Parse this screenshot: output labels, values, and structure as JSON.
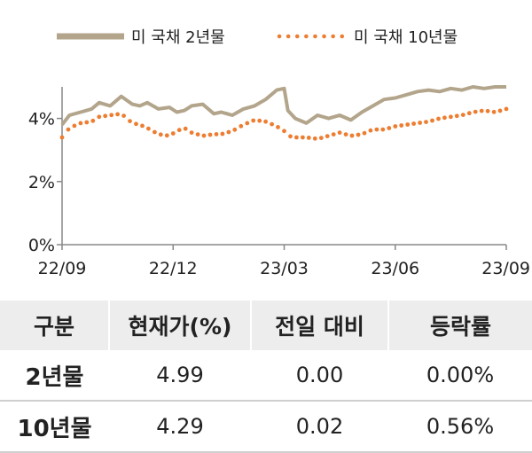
{
  "chart_data": {
    "type": "line",
    "title": "",
    "xlabel": "",
    "ylabel": "",
    "legend_position": "top",
    "grid": false,
    "ylim": [
      0,
      5
    ],
    "y_ticks": [
      {
        "value": 0,
        "label": "0%"
      },
      {
        "value": 2,
        "label": "2%"
      },
      {
        "value": 4,
        "label": "4%"
      }
    ],
    "x_ticks": [
      {
        "value": 0,
        "label": "22/09"
      },
      {
        "value": 3,
        "label": "22/12"
      },
      {
        "value": 6,
        "label": "23/03"
      },
      {
        "value": 9,
        "label": "23/06"
      },
      {
        "value": 12,
        "label": "23/09"
      }
    ],
    "x_unit_note": "months since 22/09",
    "series": [
      {
        "name": "미 국채 2년물",
        "color": "#b3a58b",
        "style": "solid",
        "x": [
          0,
          0.2,
          0.5,
          0.8,
          1.0,
          1.3,
          1.6,
          1.9,
          2.1,
          2.3,
          2.6,
          2.9,
          3.1,
          3.3,
          3.5,
          3.8,
          4.1,
          4.3,
          4.6,
          4.9,
          5.2,
          5.5,
          5.8,
          6.0,
          6.1,
          6.3,
          6.6,
          6.9,
          7.2,
          7.5,
          7.8,
          8.1,
          8.4,
          8.7,
          9.0,
          9.3,
          9.6,
          9.9,
          10.2,
          10.5,
          10.8,
          11.1,
          11.4,
          11.7,
          12.0
        ],
        "y": [
          3.8,
          4.1,
          4.2,
          4.3,
          4.5,
          4.4,
          4.7,
          4.45,
          4.4,
          4.5,
          4.3,
          4.35,
          4.2,
          4.25,
          4.4,
          4.45,
          4.15,
          4.2,
          4.1,
          4.3,
          4.4,
          4.6,
          4.9,
          4.95,
          4.25,
          4.0,
          3.85,
          4.1,
          4.0,
          4.1,
          3.95,
          4.2,
          4.4,
          4.6,
          4.65,
          4.75,
          4.85,
          4.9,
          4.85,
          4.95,
          4.9,
          5.0,
          4.95,
          5.0,
          5.0
        ]
      },
      {
        "name": "미 국채 10년물",
        "color": "#ed7d31",
        "style": "dotted",
        "x": [
          0,
          0.2,
          0.5,
          0.8,
          1.0,
          1.3,
          1.6,
          1.9,
          2.1,
          2.3,
          2.6,
          2.9,
          3.1,
          3.3,
          3.5,
          3.8,
          4.1,
          4.3,
          4.6,
          4.9,
          5.2,
          5.5,
          5.8,
          6.0,
          6.1,
          6.3,
          6.6,
          6.9,
          7.2,
          7.5,
          7.8,
          8.1,
          8.4,
          8.7,
          9.0,
          9.3,
          9.6,
          9.9,
          10.2,
          10.5,
          10.8,
          11.1,
          11.4,
          11.7,
          12.0
        ],
        "y": [
          3.4,
          3.7,
          3.85,
          3.9,
          4.05,
          4.1,
          4.15,
          3.85,
          3.8,
          3.7,
          3.5,
          3.45,
          3.6,
          3.7,
          3.55,
          3.45,
          3.5,
          3.5,
          3.6,
          3.8,
          3.95,
          3.9,
          3.75,
          3.6,
          3.45,
          3.4,
          3.4,
          3.35,
          3.45,
          3.55,
          3.45,
          3.5,
          3.65,
          3.65,
          3.75,
          3.8,
          3.85,
          3.9,
          4.0,
          4.05,
          4.1,
          4.2,
          4.25,
          4.2,
          4.3
        ]
      }
    ]
  },
  "table": {
    "headers": [
      "구분",
      "현재가(%)",
      "전일 대비",
      "등락률"
    ],
    "rows": [
      [
        "2년물",
        "4.99",
        "0.00",
        "0.00%"
      ],
      [
        "10년물",
        "4.29",
        "0.02",
        "0.56%"
      ]
    ]
  }
}
